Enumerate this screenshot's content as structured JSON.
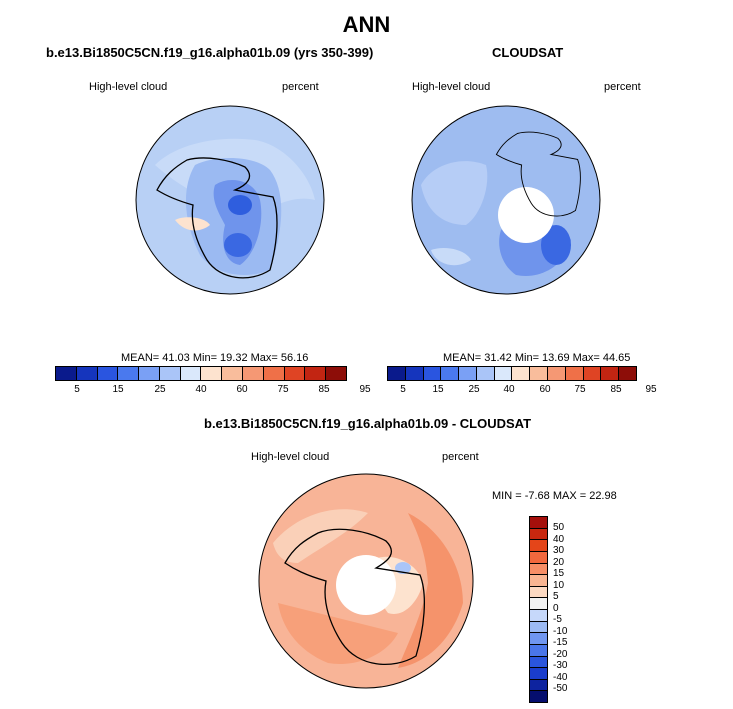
{
  "page": {
    "title": "ANN"
  },
  "panels": [
    {
      "title": "b.e13.Bi1850C5CN.f19_g16.alpha01b.09 (yrs 350-399)",
      "variable": "High-level cloud",
      "units": "percent",
      "stats": "MEAN= 41.03  Min= 19.32  Max= 56.16",
      "base_color": "#bcd4f6",
      "has_hole": false
    },
    {
      "title": "CLOUDSAT",
      "variable": "High-level cloud",
      "units": "percent",
      "stats": "MEAN= 31.42  Min= 13.69  Max= 44.65",
      "base_color": "#9ebcf0",
      "has_hole": true
    },
    {
      "title": "b.e13.Bi1850C5CN.f19_g16.alpha01b.09 - CLOUDSAT",
      "variable": "High-level cloud",
      "units": "percent",
      "stats": "MIN =  -7.68 MAX =  22.98",
      "base_color": "#f8b497",
      "has_hole": true
    }
  ],
  "colorbar_h": {
    "colors": [
      "#0a1a8c",
      "#1535bd",
      "#2a55e0",
      "#4a79ee",
      "#7aa0f5",
      "#aac5f8",
      "#dae8fb",
      "#fde3cf",
      "#f9bd9c",
      "#f59874",
      "#ef7048",
      "#df4424",
      "#c22512",
      "#8d0d08"
    ],
    "tick_labels": [
      "5",
      "15",
      "25",
      "40",
      "60",
      "75",
      "85",
      "95"
    ]
  },
  "colorbar_v": {
    "colors": [
      "#a50f0b",
      "#c8270f",
      "#e44519",
      "#f2683d",
      "#f78e66",
      "#f9b592",
      "#fcd9c2",
      "#f2f2f2",
      "#c6d8fa",
      "#9cbaf4",
      "#7096f0",
      "#4a76ea",
      "#2a55dd",
      "#1a3dcc",
      "#0d239f",
      "#050e6e"
    ],
    "tick_labels": [
      "50",
      "40",
      "30",
      "20",
      "15",
      "10",
      "5",
      "0",
      "-5",
      "-10",
      "-15",
      "-20",
      "-30",
      "-40",
      "-50"
    ]
  },
  "chart_data": [
    {
      "type": "heatmap",
      "title": "b.e13.Bi1850C5CN.f19_g16.alpha01b.09 (yrs 350-399)",
      "projection": "south polar stereographic",
      "variable": "High-level cloud",
      "units": "percent",
      "levels": [
        5,
        10,
        15,
        20,
        25,
        30,
        40,
        50,
        60,
        70,
        75,
        80,
        85,
        90,
        95
      ],
      "mean": 41.03,
      "min": 19.32,
      "max": 56.16
    },
    {
      "type": "heatmap",
      "title": "CLOUDSAT",
      "projection": "south polar stereographic",
      "variable": "High-level cloud",
      "units": "percent",
      "levels": [
        5,
        10,
        15,
        20,
        25,
        30,
        40,
        50,
        60,
        70,
        75,
        80,
        85,
        90,
        95
      ],
      "mean": 31.42,
      "min": 13.69,
      "max": 44.65
    },
    {
      "type": "heatmap",
      "title": "b.e13.Bi1850C5CN.f19_g16.alpha01b.09 - CLOUDSAT",
      "projection": "south polar stereographic",
      "variable": "High-level cloud",
      "units": "percent",
      "levels": [
        -50,
        -40,
        -30,
        -20,
        -15,
        -10,
        -5,
        0,
        5,
        10,
        15,
        20,
        30,
        40,
        50
      ],
      "min": -7.68,
      "max": 22.98
    }
  ]
}
